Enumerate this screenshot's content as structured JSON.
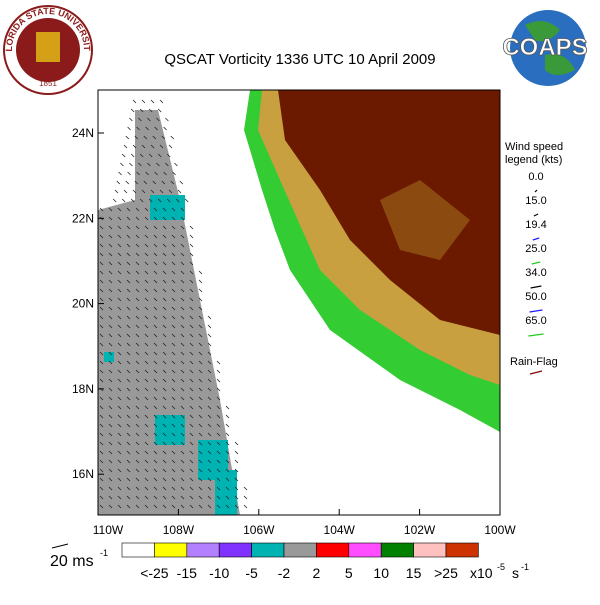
{
  "title": "QSCAT Vorticity 1336 UTC 10 April 2009",
  "seal": {
    "name": "FLORIDA STATE UNIVERSITY",
    "year": "1851"
  },
  "logo": "COAPS",
  "map": {
    "lat_labels": [
      "24N",
      "22N",
      "20N",
      "18N",
      "16N"
    ],
    "lon_labels": [
      "110W",
      "108W",
      "106W",
      "104W",
      "102W",
      "100W"
    ]
  },
  "wind_legend": {
    "title_lines": [
      "Wind speed",
      "legend (kts)"
    ],
    "entries": [
      {
        "label": "0.0",
        "color": "#000000"
      },
      {
        "label": "15.0",
        "color": "#000000"
      },
      {
        "label": "19.4",
        "color": "#1a1aff"
      },
      {
        "label": "25.0",
        "color": "#22cc22"
      },
      {
        "label": "34.0",
        "color": "#000000"
      },
      {
        "label": "50.0",
        "color": "#1a1aff"
      },
      {
        "label": "65.0",
        "color": "#22cc22"
      }
    ],
    "rain_flag": {
      "label": "Rain-Flag",
      "color": "#8b0000"
    }
  },
  "scale_arrow": {
    "label": "20 ms",
    "exponent": "-1"
  },
  "colorbar": {
    "colors": [
      "#ffffff",
      "#ffff00",
      "#b380ff",
      "#8033ff",
      "#00b3b3",
      "#999999",
      "#ff0000",
      "#ff4dff",
      "#008000",
      "#ffc0c0",
      "#cc3300"
    ],
    "labels": [
      "<-25",
      "-15",
      "-10",
      "-5",
      "-2",
      "2",
      "5",
      "10",
      "15",
      ">25"
    ],
    "unit": {
      "base": "x10",
      "exp1": "-5",
      "s": "s",
      "exp2": "-1"
    }
  }
}
